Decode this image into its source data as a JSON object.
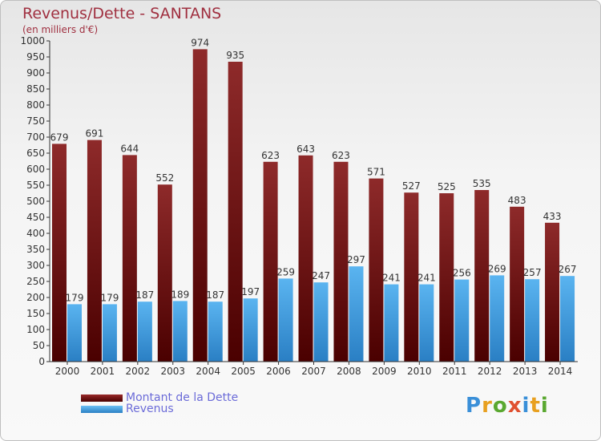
{
  "header": {
    "title": "Revenus/Dette - SANTANS",
    "subtitle": "(en milliers d'€)"
  },
  "legend": {
    "debt_label": "Montant de la Dette",
    "revenue_label": "Revenus"
  },
  "logo": {
    "text": "Proxiti"
  },
  "colors": {
    "debt": "#7a1a1a",
    "revenue": "#4aa3e8",
    "title": "#a03040",
    "legend_text": "#6b6bd8"
  },
  "chart_data": {
    "type": "bar",
    "title": "Revenus/Dette - SANTANS",
    "subtitle": "(en milliers d'€)",
    "categories": [
      "2000",
      "2001",
      "2002",
      "2003",
      "2004",
      "2005",
      "2006",
      "2007",
      "2008",
      "2009",
      "2010",
      "2011",
      "2012",
      "2013",
      "2014"
    ],
    "series": [
      {
        "name": "Montant de la Dette",
        "values": [
          679,
          691,
          644,
          552,
          974,
          935,
          623,
          643,
          623,
          571,
          527,
          525,
          535,
          483,
          433
        ]
      },
      {
        "name": "Revenus",
        "values": [
          179,
          179,
          187,
          189,
          187,
          197,
          259,
          247,
          297,
          241,
          241,
          256,
          269,
          257,
          267
        ]
      }
    ],
    "ylim": [
      0,
      1000
    ],
    "yticks": [
      0,
      50,
      100,
      150,
      200,
      250,
      300,
      350,
      400,
      450,
      500,
      550,
      600,
      650,
      700,
      750,
      800,
      850,
      900,
      950,
      1000
    ],
    "grid": false,
    "legend_position": "bottom-left"
  }
}
